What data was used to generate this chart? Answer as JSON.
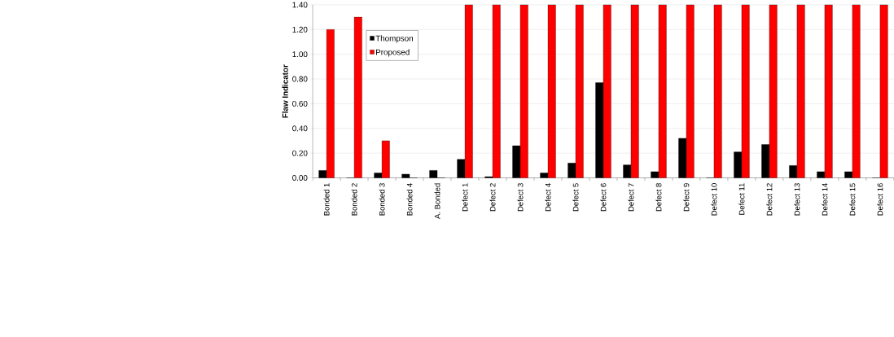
{
  "chart_data": {
    "type": "bar",
    "ylabel": "Flaw Indicator",
    "categories": [
      "Bonded 1",
      "Bonded 2",
      "Bonded 3",
      "Bonded 4",
      "A. Bonded",
      "Defect 1",
      "Defect 2",
      "Defect 3",
      "Defect 4",
      "Defect 5",
      "Defect 6",
      "Defect 7",
      "Defect 8",
      "Defect 9",
      "Defect 10",
      "Defect 11",
      "Defect 12",
      "Defect 13",
      "Defect 14",
      "Defect 15",
      "Defect 16"
    ],
    "series": [
      {
        "name": "Thompson",
        "color": "#000000",
        "values": [
          0.06,
          0,
          0.04,
          0.03,
          0.06,
          0.15,
          0.01,
          0.26,
          0.04,
          0.12,
          0.77,
          0.105,
          0.05,
          0.32,
          0,
          0.21,
          0.27,
          0.1,
          0.05,
          0.05,
          0
        ]
      },
      {
        "name": "Proposed",
        "color": "#ff0000",
        "values": [
          1.2,
          1.3,
          0.3,
          0,
          0,
          1.4,
          1.4,
          1.4,
          1.4,
          1.4,
          1.4,
          1.4,
          1.4,
          1.4,
          1.4,
          1.4,
          1.4,
          1.4,
          1.4,
          1.4,
          1.4
        ]
      }
    ],
    "ylim": [
      0,
      1.4
    ],
    "yticks": [
      {
        "value": 0,
        "label": "0.00"
      },
      {
        "value": 0.2,
        "label": "0.20"
      },
      {
        "value": 0.4,
        "label": "0.40"
      },
      {
        "value": 0.6,
        "label": "0.60"
      },
      {
        "value": 0.8,
        "label": "0.80"
      },
      {
        "value": 1.0,
        "label": "1.00"
      },
      {
        "value": 1.2,
        "label": "1.20"
      },
      {
        "value": 1.4,
        "label": "1.40"
      }
    ],
    "grid": "y",
    "legend": "top left"
  }
}
